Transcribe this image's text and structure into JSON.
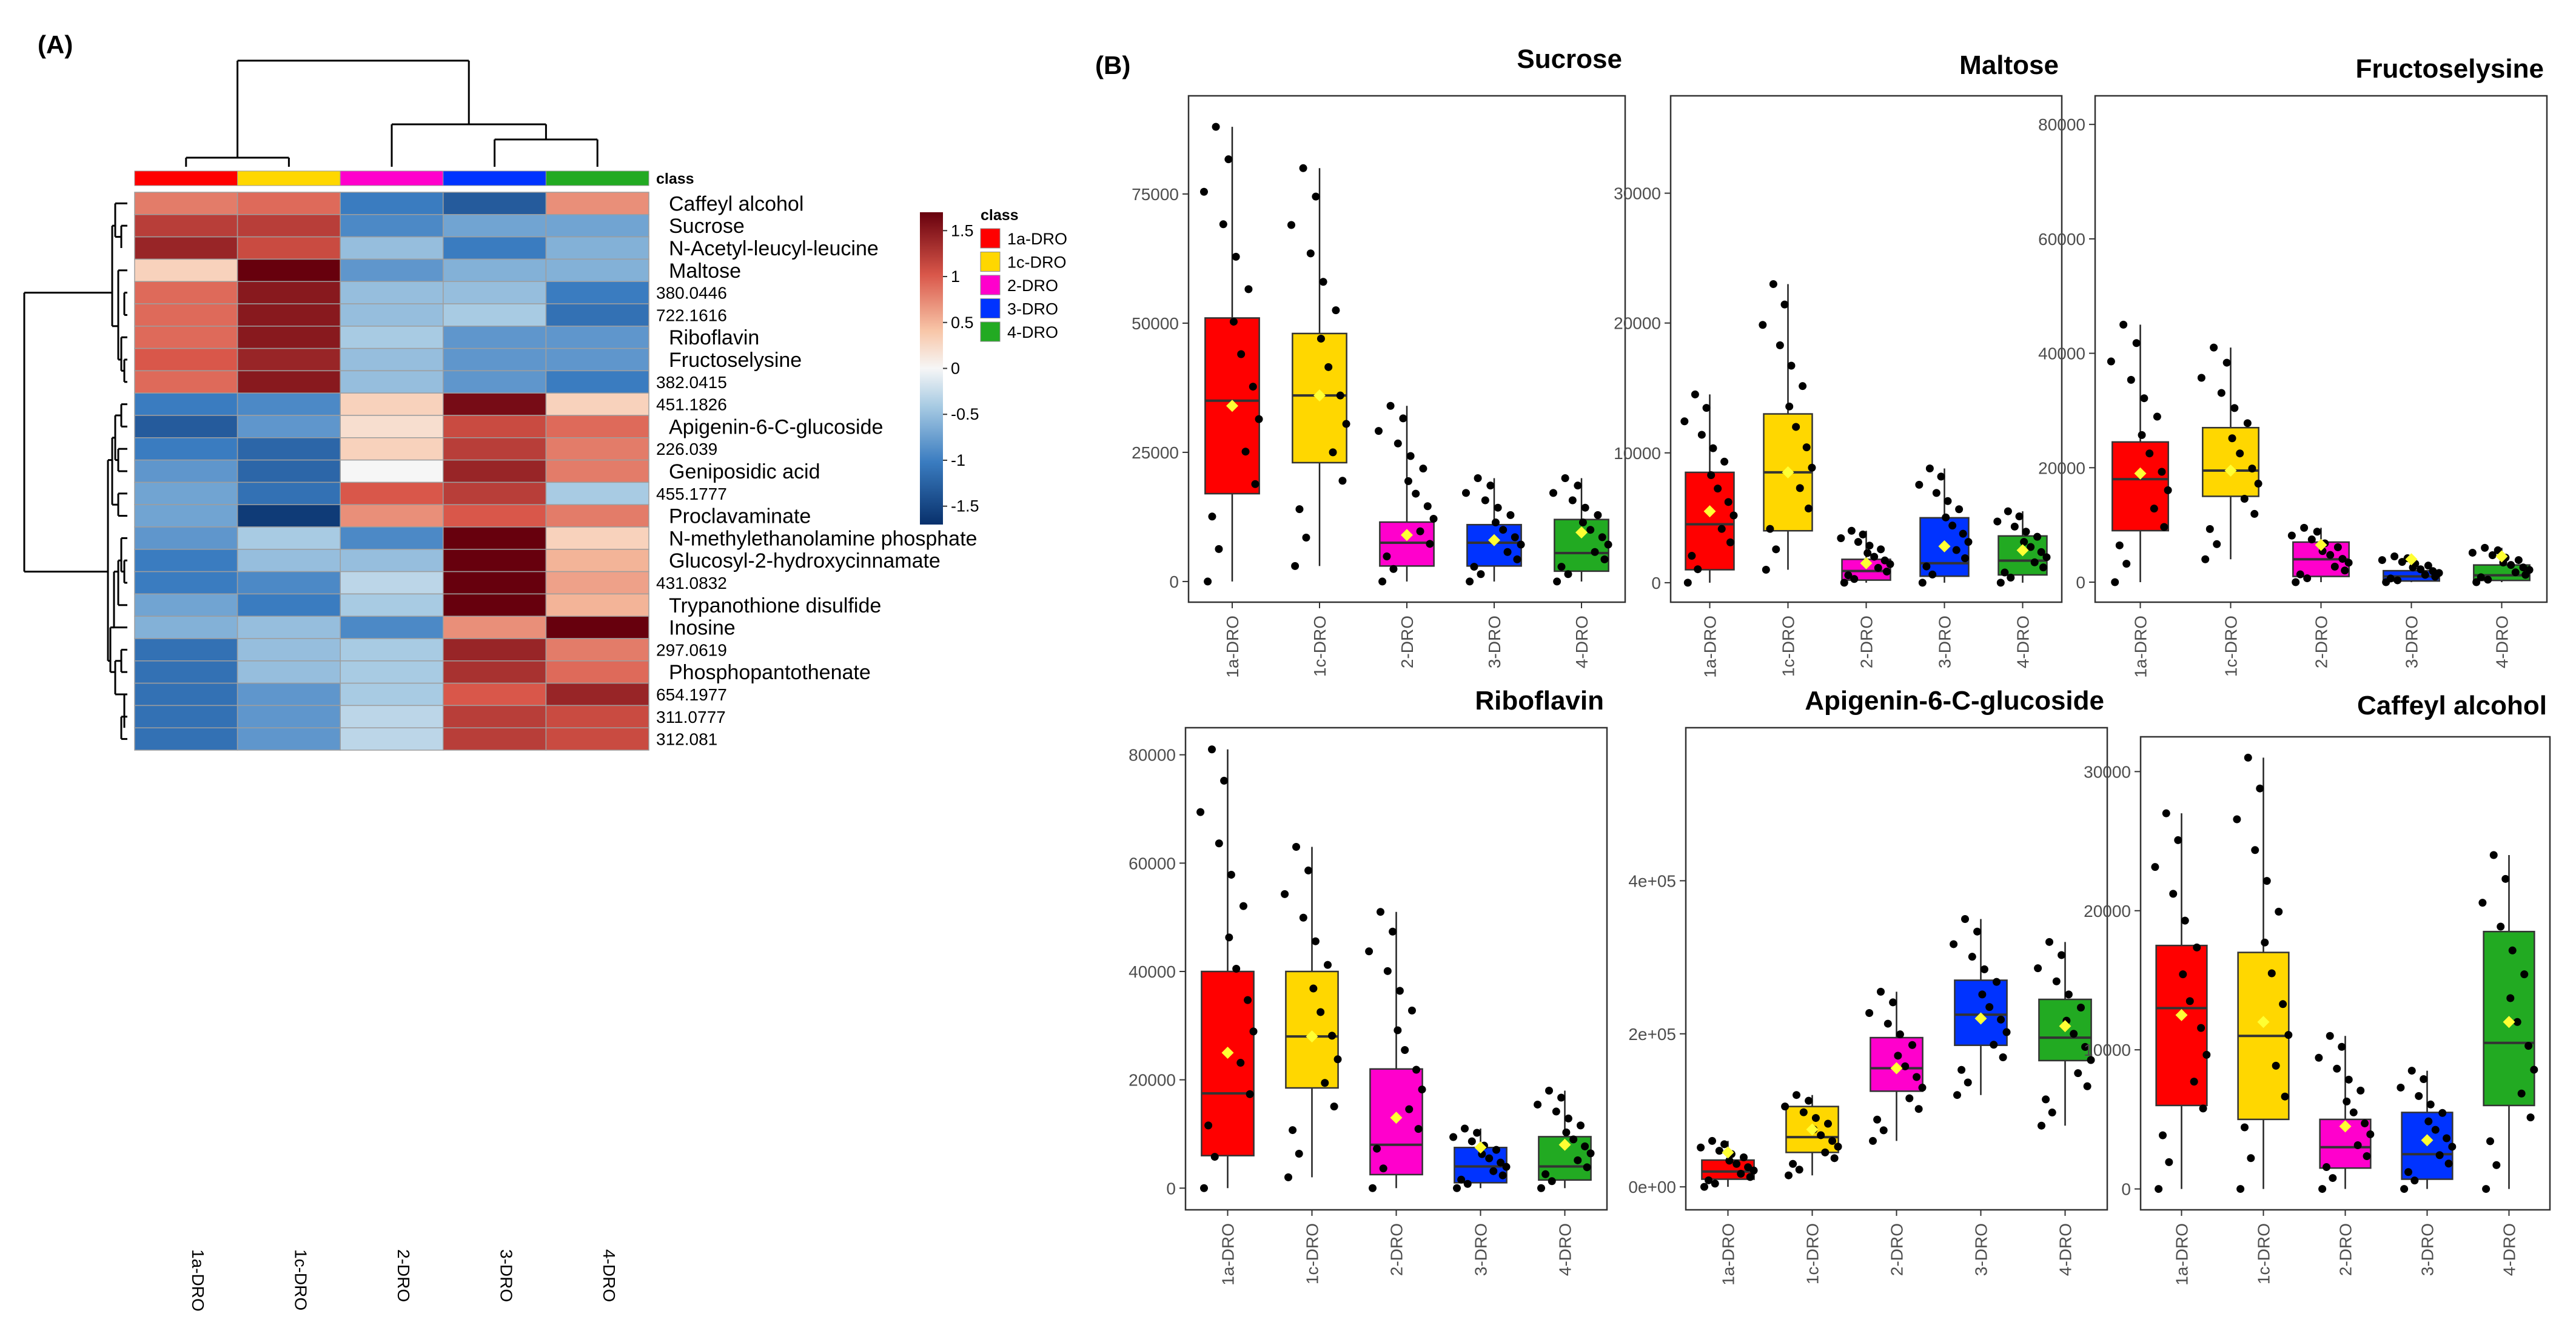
{
  "panel_labels": {
    "a": "(A)",
    "b": "(B)"
  },
  "colors": {
    "groups": {
      "1a-DRO": "#ff0000",
      "1c-DRO": "#ffd700",
      "2-DRO": "#ff00cc",
      "3-DRO": "#0033ff",
      "4-DRO": "#22aa22"
    },
    "mean_marker": "#ffff33"
  },
  "chart_data": [
    {
      "type": "heatmap",
      "title": "",
      "columns": [
        "1a-DRO",
        "1c-DRO",
        "2-DRO",
        "3-DRO",
        "4-DRO"
      ],
      "annotation_label": "class",
      "legend": {
        "title": "class",
        "entries": [
          "1a-DRO",
          "1c-DRO",
          "2-DRO",
          "3-DRO",
          "4-DRO"
        ],
        "scale_ticks": [
          "1.5",
          "1",
          "0.5",
          "0",
          "-0.5",
          "-1",
          "-1.5"
        ],
        "range": [
          -1.7,
          1.7
        ]
      },
      "rows": [
        {
          "label": "Caffeyl alcohol",
          "values": [
            0.8,
            0.9,
            -1.0,
            -1.3,
            0.7
          ]
        },
        {
          "label": "Sucrose",
          "values": [
            1.2,
            1.2,
            -0.9,
            -0.7,
            -0.7
          ]
        },
        {
          "label": "N-Acetyl-leucyl-leucine",
          "values": [
            1.4,
            1.1,
            -0.5,
            -1.0,
            -0.6
          ]
        },
        {
          "label": "Maltose",
          "values": [
            0.3,
            1.8,
            -0.8,
            -0.6,
            -0.6
          ]
        },
        {
          "label": "380.0446",
          "values": [
            0.9,
            1.5,
            -0.5,
            -0.5,
            -1.0
          ]
        },
        {
          "label": "722.1616",
          "values": [
            0.9,
            1.5,
            -0.5,
            -0.4,
            -1.1
          ]
        },
        {
          "label": "Riboflavin",
          "values": [
            0.9,
            1.5,
            -0.4,
            -0.8,
            -0.8
          ]
        },
        {
          "label": "Fructoselysine",
          "values": [
            1.0,
            1.4,
            -0.5,
            -0.8,
            -0.8
          ]
        },
        {
          "label": "382.0415",
          "values": [
            0.9,
            1.5,
            -0.5,
            -0.8,
            -1.0
          ]
        },
        {
          "label": "451.1826",
          "values": [
            -1.0,
            -0.9,
            0.3,
            1.6,
            0.3
          ]
        },
        {
          "label": "Apigenin-6-C-glucoside",
          "values": [
            -1.3,
            -0.8,
            0.2,
            1.1,
            0.9
          ]
        },
        {
          "label": "226.039",
          "values": [
            -1.0,
            -1.2,
            0.3,
            1.2,
            0.8
          ]
        },
        {
          "label": "Geniposidic acid",
          "values": [
            -0.8,
            -1.2,
            0.0,
            1.4,
            0.8
          ]
        },
        {
          "label": "455.1777",
          "values": [
            -0.7,
            -1.1,
            1.0,
            1.2,
            -0.4
          ]
        },
        {
          "label": "Proclavaminate",
          "values": [
            -0.7,
            -1.6,
            0.7,
            1.0,
            0.8
          ]
        },
        {
          "label": "N-methylethanolamine phosphate",
          "values": [
            -0.8,
            -0.4,
            -0.9,
            1.7,
            0.3
          ]
        },
        {
          "label": "Glucosyl-2-hydroxycinnamate",
          "values": [
            -1.0,
            -0.5,
            -0.5,
            1.7,
            0.5
          ]
        },
        {
          "label": "431.0832",
          "values": [
            -1.0,
            -0.9,
            -0.3,
            1.7,
            0.6
          ]
        },
        {
          "label": "Trypanothione disulfide",
          "values": [
            -0.7,
            -1.0,
            -0.4,
            1.7,
            0.5
          ]
        },
        {
          "label": "Inosine",
          "values": [
            -0.6,
            -0.5,
            -0.9,
            0.7,
            1.7
          ]
        },
        {
          "label": "297.0619",
          "values": [
            -1.1,
            -0.5,
            -0.4,
            1.4,
            0.8
          ]
        },
        {
          "label": "Phosphopantothenate",
          "values": [
            -1.1,
            -0.5,
            -0.4,
            1.3,
            0.9
          ]
        },
        {
          "label": "654.1977",
          "values": [
            -1.1,
            -0.8,
            -0.4,
            1.0,
            1.4
          ]
        },
        {
          "label": "311.0777",
          "values": [
            -1.1,
            -0.8,
            -0.3,
            1.2,
            1.1
          ]
        },
        {
          "label": "312.081",
          "values": [
            -1.1,
            -0.8,
            -0.3,
            1.2,
            1.1
          ]
        }
      ]
    },
    {
      "type": "box",
      "title": "Sucrose",
      "categories": [
        "1a-DRO",
        "1c-DRO",
        "2-DRO",
        "3-DRO",
        "4-DRO"
      ],
      "y_ticks": [
        0,
        25000,
        50000,
        75000
      ],
      "tick_labels": [
        "0",
        "25000",
        "50000",
        "75000"
      ],
      "ylim": [
        -4000,
        94000
      ],
      "boxes": [
        {
          "q1": 17000,
          "median": 35000,
          "q3": 51000,
          "lo": 0,
          "hi": 88000,
          "mean": 34000
        },
        {
          "q1": 23000,
          "median": 36000,
          "q3": 48000,
          "lo": 3000,
          "hi": 80000,
          "mean": 36000
        },
        {
          "q1": 3000,
          "median": 7500,
          "q3": 11500,
          "lo": 0,
          "hi": 34000,
          "mean": 9000
        },
        {
          "q1": 3000,
          "median": 7500,
          "q3": 11000,
          "lo": 0,
          "hi": 20000,
          "mean": 8000
        },
        {
          "q1": 2000,
          "median": 5500,
          "q3": 12000,
          "lo": 0,
          "hi": 20000,
          "mean": 9500
        }
      ]
    },
    {
      "type": "box",
      "title": "Maltose",
      "categories": [
        "1a-DRO",
        "1c-DRO",
        "2-DRO",
        "3-DRO",
        "4-DRO"
      ],
      "y_ticks": [
        0,
        10000,
        20000,
        30000
      ],
      "tick_labels": [
        "0",
        "10000",
        "20000",
        "30000"
      ],
      "ylim": [
        -1500,
        37500
      ],
      "boxes": [
        {
          "q1": 1000,
          "median": 4500,
          "q3": 8500,
          "lo": 0,
          "hi": 14500,
          "mean": 5500
        },
        {
          "q1": 4000,
          "median": 8500,
          "q3": 13000,
          "lo": 1000,
          "hi": 23000,
          "mean": 8500
        },
        {
          "q1": 200,
          "median": 900,
          "q3": 1800,
          "lo": 0,
          "hi": 4000,
          "mean": 1500
        },
        {
          "q1": 500,
          "median": 1500,
          "q3": 5000,
          "lo": 0,
          "hi": 8800,
          "mean": 2800
        },
        {
          "q1": 600,
          "median": 1700,
          "q3": 3600,
          "lo": 0,
          "hi": 5500,
          "mean": 2500
        }
      ]
    },
    {
      "type": "box",
      "title": "Fructoselysine",
      "categories": [
        "1a-DRO",
        "1c-DRO",
        "2-DRO",
        "3-DRO",
        "4-DRO"
      ],
      "y_ticks": [
        0,
        20000,
        40000,
        60000,
        80000
      ],
      "tick_labels": [
        "0",
        "20000",
        "40000",
        "60000",
        "80000"
      ],
      "ylim": [
        -3500,
        85000
      ],
      "boxes": [
        {
          "q1": 9000,
          "median": 18000,
          "q3": 24500,
          "lo": 0,
          "hi": 45000,
          "mean": 19000
        },
        {
          "q1": 15000,
          "median": 19500,
          "q3": 27000,
          "lo": 4000,
          "hi": 41000,
          "mean": 19500
        },
        {
          "q1": 1000,
          "median": 4000,
          "q3": 7000,
          "lo": 0,
          "hi": 9500,
          "mean": 6500
        },
        {
          "q1": 200,
          "median": 1000,
          "q3": 2000,
          "lo": 0,
          "hi": 4500,
          "mean": 4000
        },
        {
          "q1": 300,
          "median": 1200,
          "q3": 3000,
          "lo": 0,
          "hi": 6000,
          "mean": 4500
        }
      ]
    },
    {
      "type": "box",
      "title": "Riboflavin",
      "categories": [
        "1a-DRO",
        "1c-DRO",
        "2-DRO",
        "3-DRO",
        "4-DRO"
      ],
      "y_ticks": [
        0,
        20000,
        40000,
        60000,
        80000
      ],
      "tick_labels": [
        "0",
        "20000",
        "40000",
        "60000",
        "80000"
      ],
      "ylim": [
        -4000,
        85000
      ],
      "boxes": [
        {
          "q1": 6000,
          "median": 17500,
          "q3": 40000,
          "lo": 0,
          "hi": 81000,
          "mean": 25000
        },
        {
          "q1": 18500,
          "median": 28000,
          "q3": 40000,
          "lo": 2000,
          "hi": 63000,
          "mean": 28000
        },
        {
          "q1": 2500,
          "median": 8000,
          "q3": 22000,
          "lo": 0,
          "hi": 51000,
          "mean": 13000
        },
        {
          "q1": 1000,
          "median": 4000,
          "q3": 7500,
          "lo": 0,
          "hi": 11000,
          "mean": 7500
        },
        {
          "q1": 1500,
          "median": 4000,
          "q3": 9500,
          "lo": 0,
          "hi": 18000,
          "mean": 8000
        }
      ]
    },
    {
      "type": "box",
      "title": "Apigenin-6-C-glucoside",
      "categories": [
        "1a-DRO",
        "1c-DRO",
        "2-DRO",
        "3-DRO",
        "4-DRO"
      ],
      "y_ticks": [
        0,
        200000,
        400000
      ],
      "tick_labels": [
        "0e+00",
        "2e+05",
        "4e+05"
      ],
      "ylim": [
        -30000,
        600000
      ],
      "boxes": [
        {
          "q1": 10000,
          "median": 20000,
          "q3": 35000,
          "lo": 0,
          "hi": 60000,
          "mean": 45000
        },
        {
          "q1": 45000,
          "median": 65000,
          "q3": 105000,
          "lo": 15000,
          "hi": 120000,
          "mean": 75000
        },
        {
          "q1": 125000,
          "median": 155000,
          "q3": 195000,
          "lo": 60000,
          "hi": 255000,
          "mean": 155000
        },
        {
          "q1": 185000,
          "median": 225000,
          "q3": 270000,
          "lo": 120000,
          "hi": 350000,
          "mean": 220000
        },
        {
          "q1": 165000,
          "median": 195000,
          "q3": 245000,
          "lo": 80000,
          "hi": 320000,
          "mean": 210000
        }
      ]
    },
    {
      "type": "box",
      "title": "Caffeyl alcohol",
      "categories": [
        "1a-DRO",
        "1c-DRO",
        "2-DRO",
        "3-DRO",
        "4-DRO"
      ],
      "y_ticks": [
        0,
        10000,
        20000,
        30000
      ],
      "tick_labels": [
        "0",
        "10000",
        "20000",
        "30000"
      ],
      "ylim": [
        -1500,
        32500
      ],
      "boxes": [
        {
          "q1": 6000,
          "median": 13000,
          "q3": 17500,
          "lo": 0,
          "hi": 27000,
          "mean": 12500
        },
        {
          "q1": 5000,
          "median": 11000,
          "q3": 17000,
          "lo": 0,
          "hi": 31000,
          "mean": 12000
        },
        {
          "q1": 1500,
          "median": 3000,
          "q3": 5000,
          "lo": 0,
          "hi": 11000,
          "mean": 4500
        },
        {
          "q1": 700,
          "median": 2500,
          "q3": 5500,
          "lo": 0,
          "hi": 8500,
          "mean": 3500
        },
        {
          "q1": 6000,
          "median": 10500,
          "q3": 18500,
          "lo": 0,
          "hi": 24000,
          "mean": 12000
        }
      ]
    }
  ]
}
